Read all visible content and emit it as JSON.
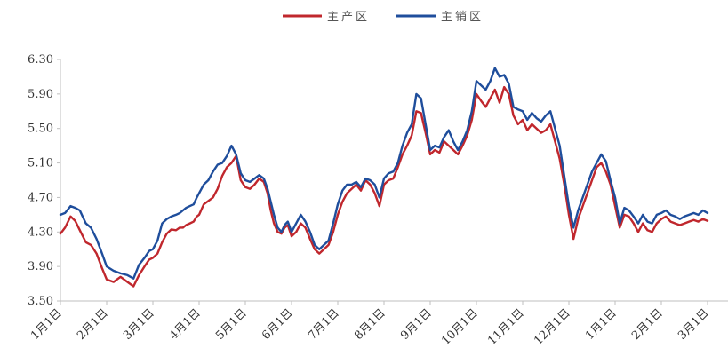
{
  "chart_data": {
    "type": "line",
    "legend_position": "top-center",
    "grid": false,
    "ylim": [
      3.5,
      6.3
    ],
    "yticks": [
      "3.50",
      "3.90",
      "4.30",
      "4.70",
      "5.10",
      "5.50",
      "5.90",
      "6.30"
    ],
    "categories": [
      "1月1日",
      "2月1日",
      "3月1日",
      "4月1日",
      "5月1日",
      "6月1日",
      "7月1日",
      "8月1日",
      "9月1日",
      "10月1日",
      "11月1日",
      "12月1日",
      "1月1日",
      "2月1日",
      "3月1日"
    ],
    "series": [
      {
        "name": "主产区",
        "color": "#c0272d",
        "x": [
          0.0,
          0.1,
          0.22,
          0.32,
          0.42,
          0.55,
          0.66,
          0.78,
          0.9,
          1.0,
          1.15,
          1.3,
          1.45,
          1.58,
          1.7,
          1.82,
          1.92,
          2.0,
          2.1,
          2.2,
          2.3,
          2.4,
          2.5,
          2.58,
          2.65,
          2.72,
          2.8,
          2.88,
          2.95,
          3.0,
          3.1,
          3.2,
          3.3,
          3.4,
          3.5,
          3.6,
          3.7,
          3.8,
          3.9,
          4.0,
          4.1,
          4.2,
          4.3,
          4.4,
          4.48,
          4.55,
          4.62,
          4.7,
          4.78,
          4.85,
          4.92,
          5.0,
          5.1,
          5.2,
          5.3,
          5.4,
          5.5,
          5.6,
          5.7,
          5.8,
          5.9,
          6.0,
          6.1,
          6.2,
          6.3,
          6.4,
          6.5,
          6.6,
          6.7,
          6.8,
          6.9,
          7.0,
          7.1,
          7.2,
          7.3,
          7.4,
          7.5,
          7.6,
          7.7,
          7.8,
          7.9,
          8.0,
          8.1,
          8.2,
          8.3,
          8.4,
          8.5,
          8.6,
          8.7,
          8.8,
          8.9,
          9.0,
          9.1,
          9.2,
          9.3,
          9.4,
          9.5,
          9.6,
          9.7,
          9.8,
          9.9,
          10.0,
          10.1,
          10.2,
          10.3,
          10.4,
          10.5,
          10.6,
          10.7,
          10.8,
          10.9,
          11.0,
          11.1,
          11.2,
          11.3,
          11.4,
          11.5,
          11.6,
          11.7,
          11.8,
          11.9,
          12.0,
          12.1,
          12.2,
          12.3,
          12.4,
          12.5,
          12.6,
          12.7,
          12.8,
          12.9,
          13.0,
          13.1,
          13.2,
          13.3,
          13.4,
          13.5,
          13.6,
          13.7,
          13.8,
          13.9,
          14.0
        ],
        "values": [
          4.28,
          4.35,
          4.48,
          4.43,
          4.32,
          4.18,
          4.15,
          4.05,
          3.88,
          3.75,
          3.72,
          3.78,
          3.72,
          3.67,
          3.8,
          3.9,
          3.98,
          4.0,
          4.05,
          4.18,
          4.28,
          4.33,
          4.32,
          4.35,
          4.35,
          4.38,
          4.4,
          4.42,
          4.48,
          4.5,
          4.62,
          4.66,
          4.7,
          4.8,
          4.95,
          5.05,
          5.1,
          5.18,
          4.9,
          4.82,
          4.8,
          4.85,
          4.92,
          4.88,
          4.75,
          4.55,
          4.4,
          4.3,
          4.28,
          4.35,
          4.38,
          4.25,
          4.3,
          4.4,
          4.35,
          4.22,
          4.1,
          4.05,
          4.1,
          4.15,
          4.3,
          4.5,
          4.65,
          4.75,
          4.8,
          4.85,
          4.78,
          4.9,
          4.85,
          4.75,
          4.6,
          4.85,
          4.9,
          4.92,
          5.05,
          5.2,
          5.3,
          5.42,
          5.7,
          5.68,
          5.45,
          5.2,
          5.25,
          5.22,
          5.35,
          5.3,
          5.25,
          5.2,
          5.3,
          5.42,
          5.6,
          5.9,
          5.82,
          5.75,
          5.85,
          5.95,
          5.8,
          5.98,
          5.9,
          5.65,
          5.55,
          5.6,
          5.48,
          5.55,
          5.5,
          5.45,
          5.48,
          5.55,
          5.35,
          5.15,
          4.85,
          4.5,
          4.22,
          4.45,
          4.6,
          4.75,
          4.9,
          5.05,
          5.1,
          5.0,
          4.85,
          4.6,
          4.35,
          4.5,
          4.48,
          4.4,
          4.3,
          4.4,
          4.32,
          4.3,
          4.4,
          4.45,
          4.48,
          4.42,
          4.4,
          4.38,
          4.4,
          4.42,
          4.44,
          4.42,
          4.45,
          4.43
        ]
      },
      {
        "name": "主销区",
        "color": "#1f4e9c",
        "x": [
          0.0,
          0.1,
          0.22,
          0.32,
          0.42,
          0.55,
          0.66,
          0.78,
          0.9,
          1.0,
          1.15,
          1.3,
          1.45,
          1.58,
          1.7,
          1.82,
          1.92,
          2.0,
          2.1,
          2.2,
          2.3,
          2.4,
          2.5,
          2.58,
          2.65,
          2.72,
          2.8,
          2.88,
          2.95,
          3.0,
          3.1,
          3.2,
          3.3,
          3.4,
          3.5,
          3.6,
          3.7,
          3.8,
          3.9,
          4.0,
          4.1,
          4.2,
          4.3,
          4.4,
          4.48,
          4.55,
          4.62,
          4.7,
          4.78,
          4.85,
          4.92,
          5.0,
          5.1,
          5.2,
          5.3,
          5.4,
          5.5,
          5.6,
          5.7,
          5.8,
          5.9,
          6.0,
          6.1,
          6.2,
          6.3,
          6.4,
          6.5,
          6.6,
          6.7,
          6.8,
          6.9,
          7.0,
          7.1,
          7.2,
          7.3,
          7.4,
          7.5,
          7.6,
          7.7,
          7.8,
          7.9,
          8.0,
          8.1,
          8.2,
          8.3,
          8.4,
          8.5,
          8.6,
          8.7,
          8.8,
          8.9,
          9.0,
          9.1,
          9.2,
          9.3,
          9.4,
          9.5,
          9.6,
          9.7,
          9.8,
          9.9,
          10.0,
          10.1,
          10.2,
          10.3,
          10.4,
          10.5,
          10.6,
          10.7,
          10.8,
          10.9,
          11.0,
          11.1,
          11.2,
          11.3,
          11.4,
          11.5,
          11.6,
          11.7,
          11.8,
          11.9,
          12.0,
          12.1,
          12.2,
          12.3,
          12.4,
          12.5,
          12.6,
          12.7,
          12.8,
          12.9,
          13.0,
          13.1,
          13.2,
          13.3,
          13.4,
          13.5,
          13.6,
          13.7,
          13.8,
          13.9,
          14.0
        ],
        "values": [
          4.5,
          4.52,
          4.6,
          4.58,
          4.55,
          4.4,
          4.35,
          4.22,
          4.05,
          3.9,
          3.85,
          3.82,
          3.8,
          3.76,
          3.92,
          4.0,
          4.08,
          4.1,
          4.2,
          4.4,
          4.45,
          4.48,
          4.5,
          4.52,
          4.55,
          4.58,
          4.6,
          4.62,
          4.7,
          4.75,
          4.85,
          4.9,
          5.0,
          5.08,
          5.1,
          5.18,
          5.3,
          5.2,
          4.98,
          4.9,
          4.88,
          4.92,
          4.96,
          4.92,
          4.8,
          4.65,
          4.5,
          4.35,
          4.3,
          4.38,
          4.42,
          4.3,
          4.4,
          4.5,
          4.42,
          4.3,
          4.15,
          4.1,
          4.15,
          4.2,
          4.4,
          4.62,
          4.78,
          4.85,
          4.85,
          4.88,
          4.82,
          4.92,
          4.9,
          4.85,
          4.7,
          4.92,
          4.98,
          5.0,
          5.1,
          5.3,
          5.45,
          5.55,
          5.9,
          5.85,
          5.55,
          5.25,
          5.3,
          5.28,
          5.4,
          5.48,
          5.35,
          5.25,
          5.35,
          5.48,
          5.7,
          6.05,
          6.0,
          5.95,
          6.05,
          6.2,
          6.1,
          6.12,
          6.02,
          5.75,
          5.72,
          5.7,
          5.6,
          5.68,
          5.62,
          5.58,
          5.65,
          5.7,
          5.5,
          5.3,
          4.95,
          4.6,
          4.35,
          4.55,
          4.7,
          4.85,
          5.0,
          5.1,
          5.2,
          5.12,
          4.9,
          4.7,
          4.4,
          4.58,
          4.55,
          4.48,
          4.4,
          4.5,
          4.42,
          4.4,
          4.5,
          4.52,
          4.55,
          4.5,
          4.48,
          4.45,
          4.48,
          4.5,
          4.52,
          4.5,
          4.55,
          4.52
        ]
      }
    ]
  }
}
